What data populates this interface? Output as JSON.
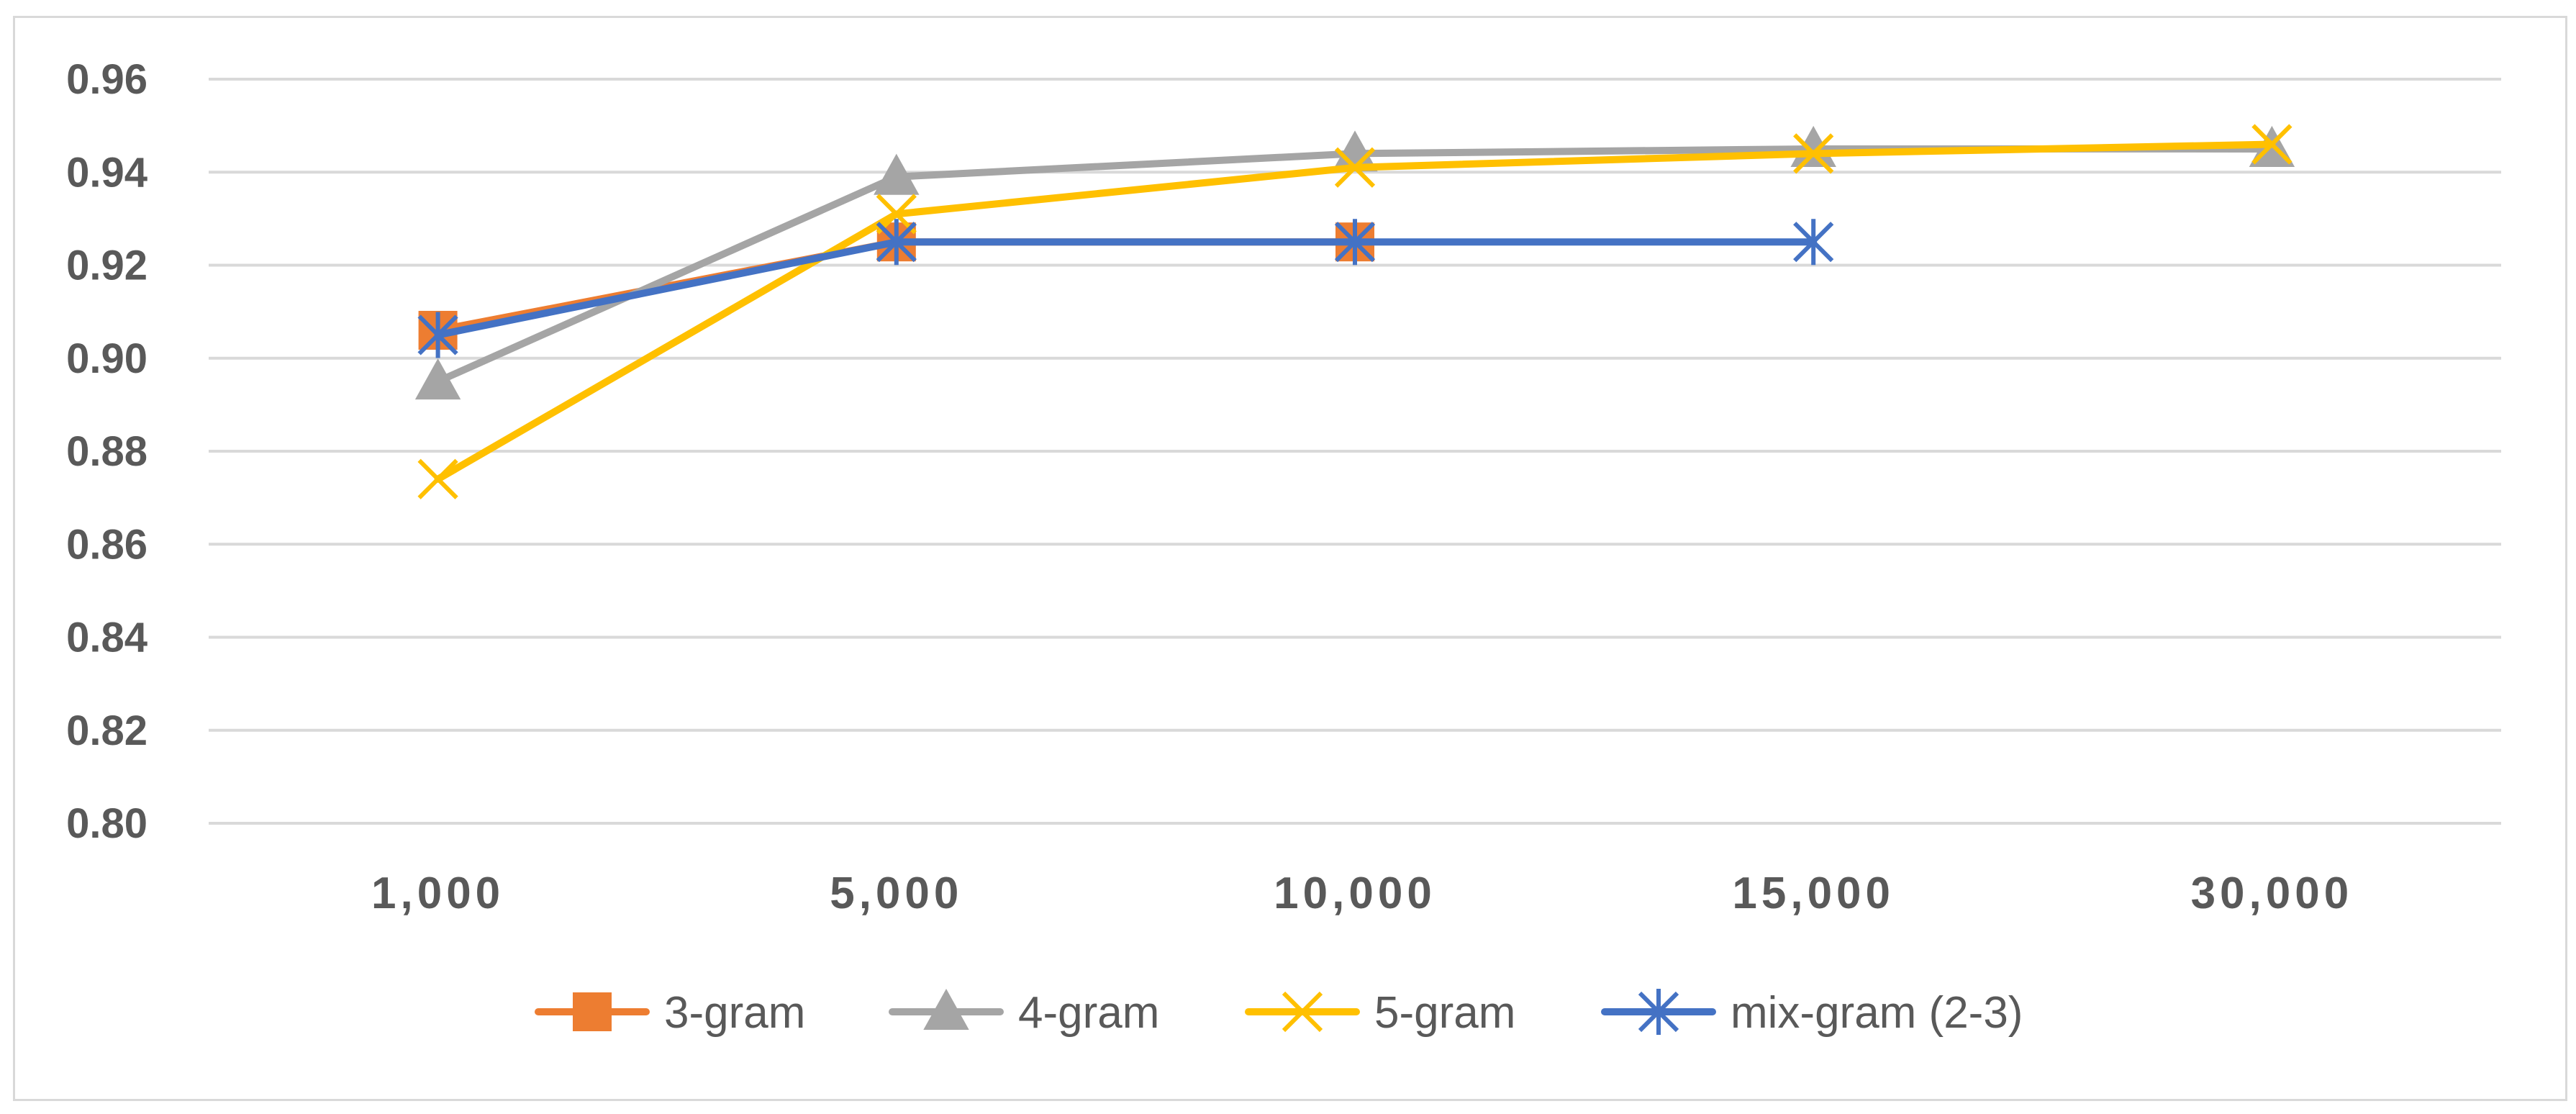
{
  "chart_data": {
    "type": "line",
    "title": "",
    "xlabel": "",
    "ylabel": "",
    "categories": [
      "1,000",
      "5,000",
      "10,000",
      "15,000",
      "30,000"
    ],
    "ylim": [
      0.8,
      0.96
    ],
    "yticks": [
      "0.80",
      "0.82",
      "0.84",
      "0.86",
      "0.88",
      "0.90",
      "0.92",
      "0.94",
      "0.96"
    ],
    "grid": true,
    "legend_position": "bottom",
    "series": [
      {
        "name": "3-gram",
        "color": "#ed7d31",
        "marker": "square",
        "values": [
          0.906,
          0.925,
          0.925,
          null,
          null
        ]
      },
      {
        "name": "4-gram",
        "color": "#a5a5a5",
        "marker": "triangle",
        "values": [
          0.895,
          0.939,
          0.944,
          0.945,
          0.945
        ]
      },
      {
        "name": "5-gram",
        "color": "#ffc000",
        "marker": "x",
        "values": [
          0.874,
          0.931,
          0.941,
          0.944,
          0.946
        ]
      },
      {
        "name": "mix-gram (2-3)",
        "color": "#4472c4",
        "marker": "asterisk",
        "values": [
          0.905,
          0.925,
          0.925,
          0.925,
          null
        ]
      }
    ]
  }
}
